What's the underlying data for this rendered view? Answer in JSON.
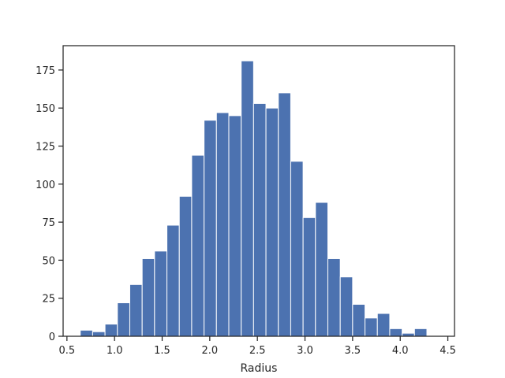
{
  "chart_data": {
    "type": "bar",
    "title": "",
    "xlabel": "Radius",
    "ylabel": "",
    "xlim": [
      0.46,
      4.57
    ],
    "ylim": [
      0,
      191
    ],
    "xticks": [
      0.5,
      1.0,
      1.5,
      2.0,
      2.5,
      3.0,
      3.5,
      4.0,
      4.5
    ],
    "xtick_labels": [
      "0.5",
      "1.0",
      "1.5",
      "2.0",
      "2.5",
      "3.0",
      "3.5",
      "4.0",
      "4.5"
    ],
    "yticks": [
      0,
      25,
      50,
      75,
      100,
      125,
      150,
      175
    ],
    "ytick_labels": [
      "0",
      "25",
      "50",
      "75",
      "100",
      "125",
      "150",
      "175"
    ],
    "grid": false,
    "bar_color": "#4c72b0",
    "bins": [
      {
        "x0": 0.64,
        "x1": 0.77,
        "count": 4
      },
      {
        "x0": 0.77,
        "x1": 0.9,
        "count": 3
      },
      {
        "x0": 0.9,
        "x1": 1.03,
        "count": 8
      },
      {
        "x0": 1.03,
        "x1": 1.16,
        "count": 22
      },
      {
        "x0": 1.16,
        "x1": 1.29,
        "count": 34
      },
      {
        "x0": 1.29,
        "x1": 1.42,
        "count": 51
      },
      {
        "x0": 1.42,
        "x1": 1.55,
        "count": 56
      },
      {
        "x0": 1.55,
        "x1": 1.68,
        "count": 73
      },
      {
        "x0": 1.68,
        "x1": 1.81,
        "count": 92
      },
      {
        "x0": 1.81,
        "x1": 1.94,
        "count": 119
      },
      {
        "x0": 1.94,
        "x1": 2.07,
        "count": 142
      },
      {
        "x0": 2.07,
        "x1": 2.2,
        "count": 147
      },
      {
        "x0": 2.2,
        "x1": 2.33,
        "count": 145
      },
      {
        "x0": 2.33,
        "x1": 2.46,
        "count": 181
      },
      {
        "x0": 2.46,
        "x1": 2.59,
        "count": 153
      },
      {
        "x0": 2.59,
        "x1": 2.72,
        "count": 150
      },
      {
        "x0": 2.72,
        "x1": 2.85,
        "count": 160
      },
      {
        "x0": 2.85,
        "x1": 2.98,
        "count": 115
      },
      {
        "x0": 2.98,
        "x1": 3.11,
        "count": 78
      },
      {
        "x0": 3.11,
        "x1": 3.24,
        "count": 88
      },
      {
        "x0": 3.24,
        "x1": 3.37,
        "count": 51
      },
      {
        "x0": 3.37,
        "x1": 3.5,
        "count": 39
      },
      {
        "x0": 3.5,
        "x1": 3.63,
        "count": 21
      },
      {
        "x0": 3.63,
        "x1": 3.76,
        "count": 12
      },
      {
        "x0": 3.76,
        "x1": 3.89,
        "count": 15
      },
      {
        "x0": 3.89,
        "x1": 4.02,
        "count": 5
      },
      {
        "x0": 4.02,
        "x1": 4.15,
        "count": 2
      },
      {
        "x0": 4.15,
        "x1": 4.28,
        "count": 5
      }
    ]
  }
}
